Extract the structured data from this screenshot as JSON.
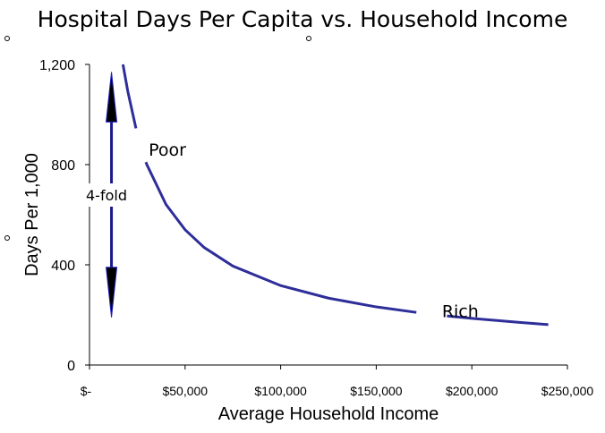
{
  "chart_data": {
    "type": "line",
    "title": "Hospital Days Per Capita vs. Household Income",
    "xlabel": "Average Household Income",
    "ylabel": "Days Per 1,000",
    "xlim": [
      0,
      250000
    ],
    "ylim": [
      0,
      1200
    ],
    "x_ticks": [
      0,
      50000,
      100000,
      150000,
      200000,
      250000
    ],
    "x_tick_labels": [
      "$-",
      "$50,000",
      "$100,000",
      "$150,000",
      "$200,000",
      "$250,000"
    ],
    "y_ticks": [
      0,
      400,
      800,
      1200
    ],
    "y_tick_labels": [
      "0",
      "400",
      "800",
      "1,200"
    ],
    "grid": false,
    "series_color": "#2e2e9a",
    "series": [
      {
        "name": "segment-1",
        "x": [
          17500,
          20000,
          24300
        ],
        "y": [
          1200,
          1094,
          945
        ]
      },
      {
        "name": "segment-2",
        "x": [
          29500,
          30000,
          40000,
          50000,
          60000,
          75000,
          100000,
          125000,
          150000,
          171000
        ],
        "y": [
          810,
          800,
          641,
          540,
          469,
          395,
          317,
          267,
          232,
          210
        ]
      },
      {
        "name": "segment-3",
        "x": [
          187000,
          200000,
          225000,
          240000
        ],
        "y": [
          196,
          186,
          170,
          161
        ]
      }
    ],
    "annotations": [
      {
        "text": "Poor",
        "x": 38000,
        "y": 860
      },
      {
        "text": "Rich",
        "x": 190000,
        "y": 205
      },
      {
        "text": "4-fold",
        "x": 11000,
        "y": 680
      }
    ],
    "arrow": {
      "x": 11500,
      "y_from": 190,
      "y_to": 1170
    }
  }
}
